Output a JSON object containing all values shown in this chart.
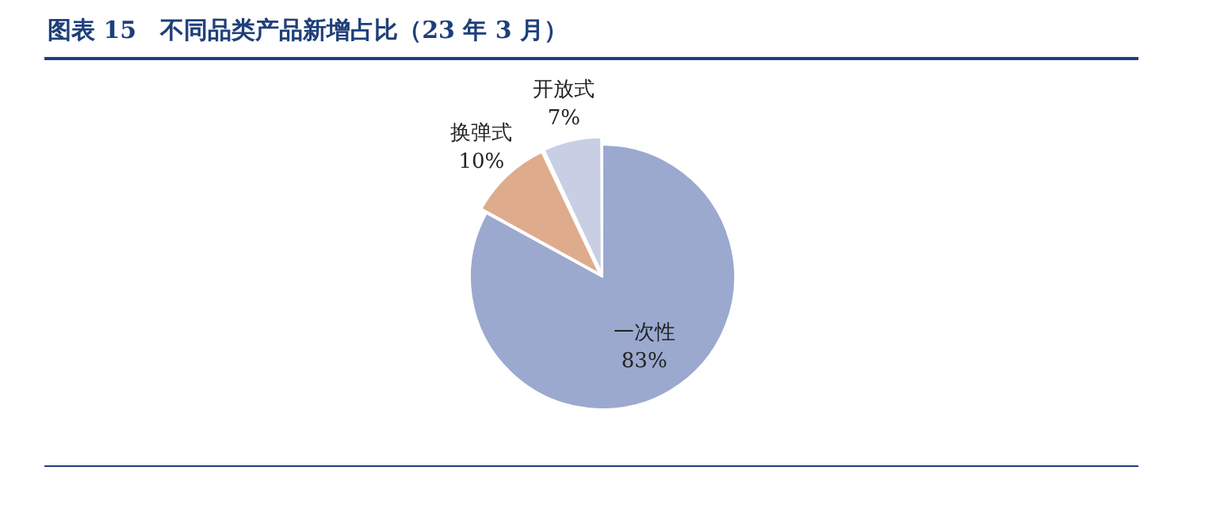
{
  "chart_data": {
    "type": "pie",
    "title": "图表 15　不同品类产品新增占比（23 年 3 月）",
    "categories": [
      "一次性",
      "换弹式",
      "开放式"
    ],
    "values": [
      83,
      10,
      7
    ],
    "colors": [
      "#9ba9cf",
      "#dfab8d",
      "#c8cee3"
    ],
    "value_labels": [
      "83%",
      "10%",
      "7%"
    ]
  }
}
